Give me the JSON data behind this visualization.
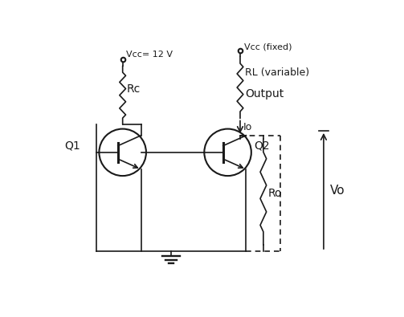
{
  "background_color": "#ffffff",
  "line_color": "#1a1a1a",
  "text_color": "#1a1a1a",
  "vcc1_label": "Vcc= 12 V",
  "vcc2_label": "Vcc (fixed)",
  "rl_label": "RL (variable)",
  "output_label": "Output",
  "rc_label": "Rc",
  "io_label": "Io",
  "ro_label": "Ro",
  "vo_label": "Vo",
  "q1_label": "Q1",
  "q2_label": "Q2",
  "figsize": [
    5.03,
    3.95
  ],
  "dpi": 100
}
